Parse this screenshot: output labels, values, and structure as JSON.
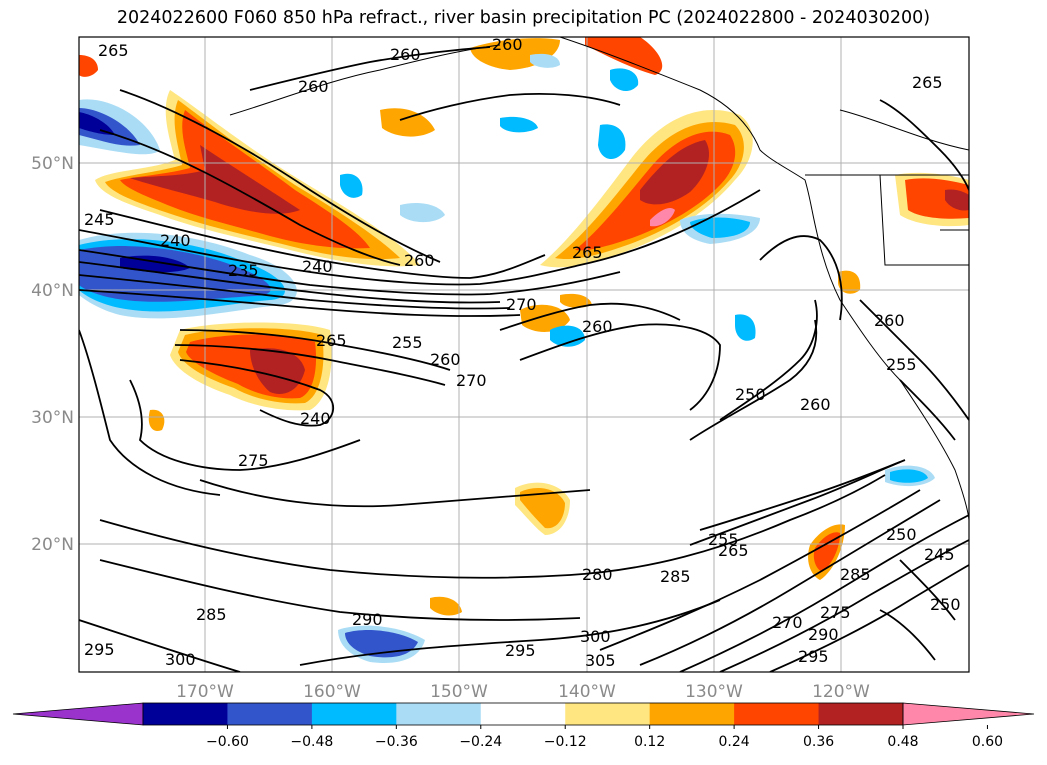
{
  "title": "2024022600 F060 850 hPa refract., river basin precipitation PC (2024022800 - 2024030200)",
  "map": {
    "lat_labels": [
      "50°N",
      "40°N",
      "30°N",
      "20°N"
    ],
    "lon_labels": [
      "170°W",
      "160°W",
      "150°W",
      "140°W",
      "130°W",
      "120°W"
    ],
    "contour_labels": [
      "265",
      "260",
      "260",
      "265",
      "260",
      "240",
      "235",
      "240",
      "260",
      "245",
      "265",
      "270",
      "255",
      "260",
      "270",
      "260",
      "265",
      "240",
      "275",
      "280",
      "285",
      "285",
      "290",
      "295",
      "300",
      "295",
      "305",
      "300",
      "250",
      "260",
      "255",
      "260",
      "255",
      "265",
      "270",
      "275",
      "285",
      "290",
      "295",
      "250",
      "245",
      "250"
    ]
  },
  "colorbar": {
    "ticks": [
      "−0.60",
      "−0.48",
      "−0.36",
      "−0.24",
      "−0.12",
      "0.12",
      "0.24",
      "0.36",
      "0.48",
      "0.60"
    ],
    "colors": [
      "#9933cc",
      "#000099",
      "#3355cc",
      "#00bbff",
      "#aaddf5",
      "#ffffff",
      "#ffe680",
      "#ffa500",
      "#ff4500",
      "#b22222",
      "#ff88aa",
      "#ff88aa"
    ]
  }
}
